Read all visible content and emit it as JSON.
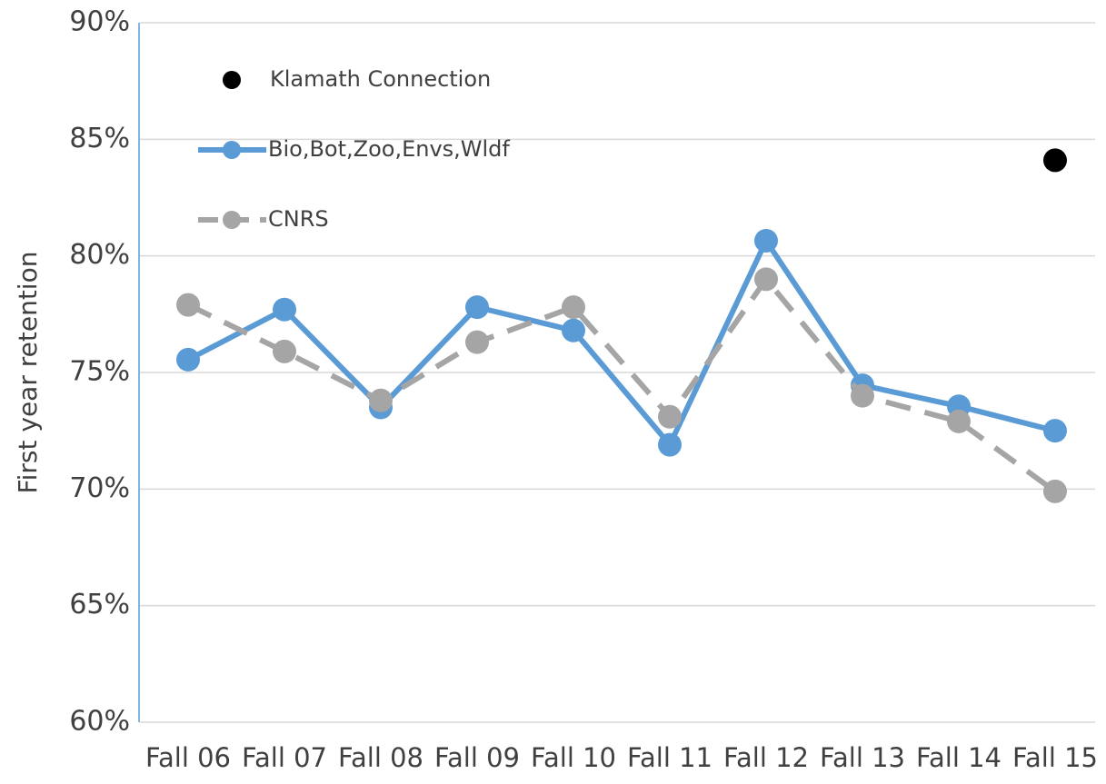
{
  "chart_data": {
    "type": "line",
    "y_label": "First year retention",
    "categories": [
      "Fall 06",
      "Fall 07",
      "Fall 08",
      "Fall 09",
      "Fall 10",
      "Fall 11",
      "Fall 12",
      "Fall 13",
      "Fall 14",
      "Fall 15"
    ],
    "series": [
      {
        "name": "Klamath Connection",
        "color": "#000000",
        "style": "markers",
        "values": [
          null,
          null,
          null,
          null,
          null,
          null,
          null,
          null,
          null,
          84.1
        ]
      },
      {
        "name": "Bio,Bot,Zoo,Envs,Wldf",
        "color": "#5b9bd5",
        "style": "solid",
        "values": [
          75.55,
          77.7,
          73.5,
          77.8,
          76.8,
          71.9,
          80.65,
          74.45,
          73.55,
          72.5
        ]
      },
      {
        "name": "CNRS",
        "color": "#a5a5a5",
        "style": "dashed",
        "values": [
          77.9,
          75.9,
          73.8,
          76.3,
          77.8,
          73.1,
          79.0,
          74.0,
          72.9,
          69.9
        ]
      }
    ],
    "ylim": [
      60,
      90
    ],
    "yticks": [
      {
        "value": 60,
        "label": "60%"
      },
      {
        "value": 65,
        "label": "65%"
      },
      {
        "value": 70,
        "label": "70%"
      },
      {
        "value": 75,
        "label": "75%"
      },
      {
        "value": 80,
        "label": "80%"
      },
      {
        "value": 85,
        "label": "85%"
      },
      {
        "value": 90,
        "label": "90%"
      }
    ],
    "grid": true,
    "legend": "top-left"
  }
}
